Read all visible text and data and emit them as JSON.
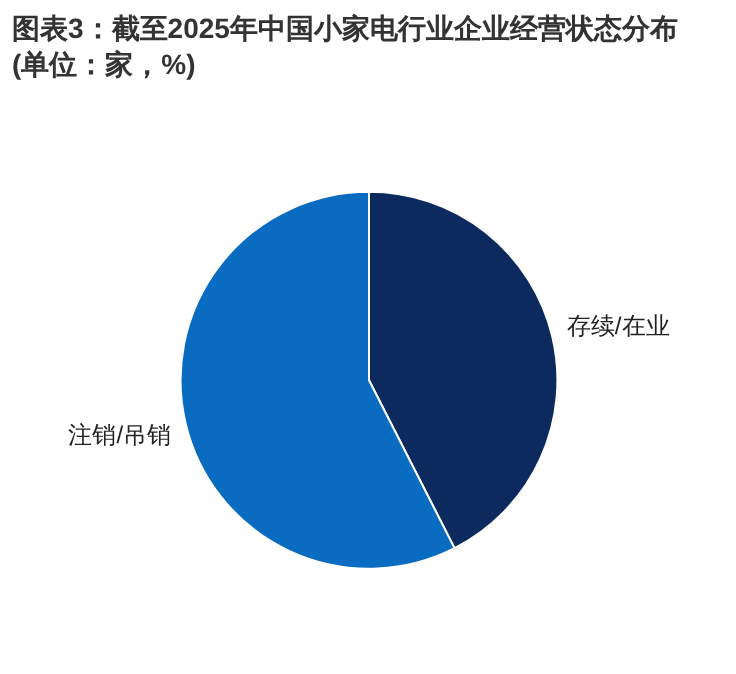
{
  "chart_data": {
    "type": "pie",
    "title": "图表3：截至2025年中国小家电行业企业经营状态分布(单位：家，%)",
    "categories": [
      "存续/在业",
      "注销/吊销"
    ],
    "values": [
      42.5,
      57.5
    ],
    "colors": [
      "#0d2a5e",
      "#0a6cc0"
    ]
  }
}
